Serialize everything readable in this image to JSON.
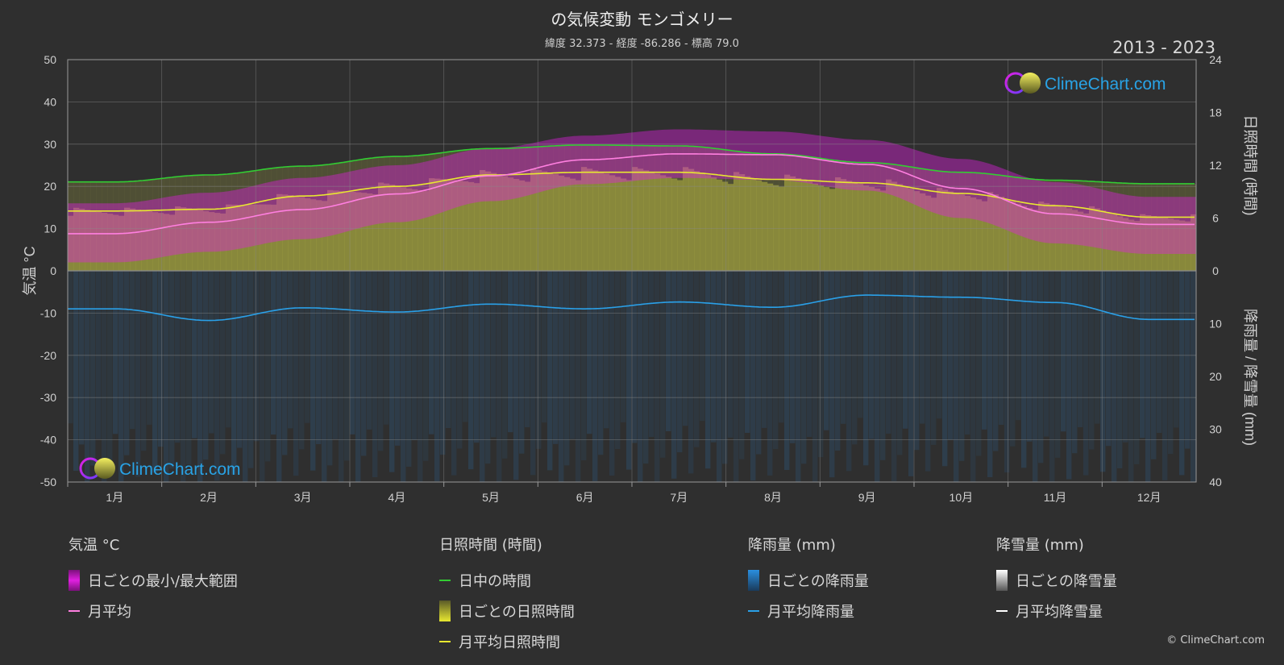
{
  "title": "の気候変動 モンゴメリー",
  "subtitle": "緯度 32.373 - 経度 -86.286 - 標高 79.0",
  "years": "2013 - 2023",
  "logo_text": "ClimeChart.com",
  "copyright": "© ClimeChart.com",
  "colors": {
    "temp_range": "#e020e0",
    "temp_avg": "#ff7fe0",
    "daylight": "#33cc33",
    "sunshine_daily": "#b8b840",
    "sunshine_avg": "#e8e830",
    "rain": "#2a7fc8",
    "rain_avg": "#2aa0e8",
    "snow": "#ffffff"
  },
  "legend": {
    "temp": {
      "heading": "気温 °C",
      "range": "日ごとの最小/最大範囲",
      "avg": "月平均"
    },
    "sun": {
      "heading": "日照時間 (時間)",
      "daylight": "日中の時間",
      "daily": "日ごとの日照時間",
      "avg": "月平均日照時間"
    },
    "rain": {
      "heading": "降雨量 (mm)",
      "daily": "日ごとの降雨量",
      "avg": "月平均降雨量"
    },
    "snow": {
      "heading": "降雪量 (mm)",
      "daily": "日ごとの降雪量",
      "avg": "月平均降雪量"
    }
  },
  "chart_data": {
    "type": "area",
    "categories": [
      "1月",
      "2月",
      "3月",
      "4月",
      "5月",
      "6月",
      "7月",
      "8月",
      "9月",
      "10月",
      "11月",
      "12月"
    ],
    "left_axis": {
      "label": "気温 °C",
      "range": [
        -50,
        50
      ],
      "ticks": [
        50,
        40,
        30,
        20,
        10,
        0,
        -10,
        -20,
        -30,
        -40,
        -50
      ]
    },
    "right_axis_top": {
      "label": "日照時間 (時間)",
      "range": [
        0,
        24
      ],
      "ticks": [
        24,
        18,
        12,
        6,
        0
      ]
    },
    "right_axis_bottom": {
      "label": "降雨量 / 降雪量 (mm)",
      "range": [
        0,
        40
      ],
      "ticks": [
        10,
        20,
        30,
        40
      ]
    },
    "series": [
      {
        "name": "日中の時間",
        "values": [
          10.1,
          10.9,
          11.9,
          13.0,
          13.9,
          14.3,
          14.2,
          13.3,
          12.3,
          11.2,
          10.3,
          9.9
        ]
      },
      {
        "name": "月平均日照時間",
        "values": [
          6.8,
          7.0,
          8.5,
          9.6,
          10.9,
          11.2,
          11.2,
          10.4,
          10.0,
          8.8,
          7.4,
          6.1
        ]
      },
      {
        "name": "月平均",
        "values": [
          8.8,
          11.5,
          14.5,
          18.2,
          22.5,
          26.3,
          27.7,
          27.5,
          25.2,
          19.5,
          13.5,
          11.0
        ]
      },
      {
        "name": "日ごとの最大",
        "values": [
          16.0,
          18.5,
          22.0,
          25.0,
          29.0,
          32.0,
          33.5,
          33.0,
          31.0,
          26.5,
          21.0,
          17.5
        ]
      },
      {
        "name": "日ごとの最小",
        "values": [
          2.0,
          4.5,
          7.5,
          11.5,
          16.5,
          20.5,
          22.0,
          21.5,
          19.0,
          12.5,
          6.5,
          4.0
        ]
      },
      {
        "name": "月平均降雨量",
        "values": [
          7.2,
          9.4,
          7.0,
          7.8,
          6.3,
          7.2,
          5.9,
          6.9,
          4.6,
          5.0,
          6.0,
          9.2
        ]
      }
    ],
    "grid": true
  }
}
